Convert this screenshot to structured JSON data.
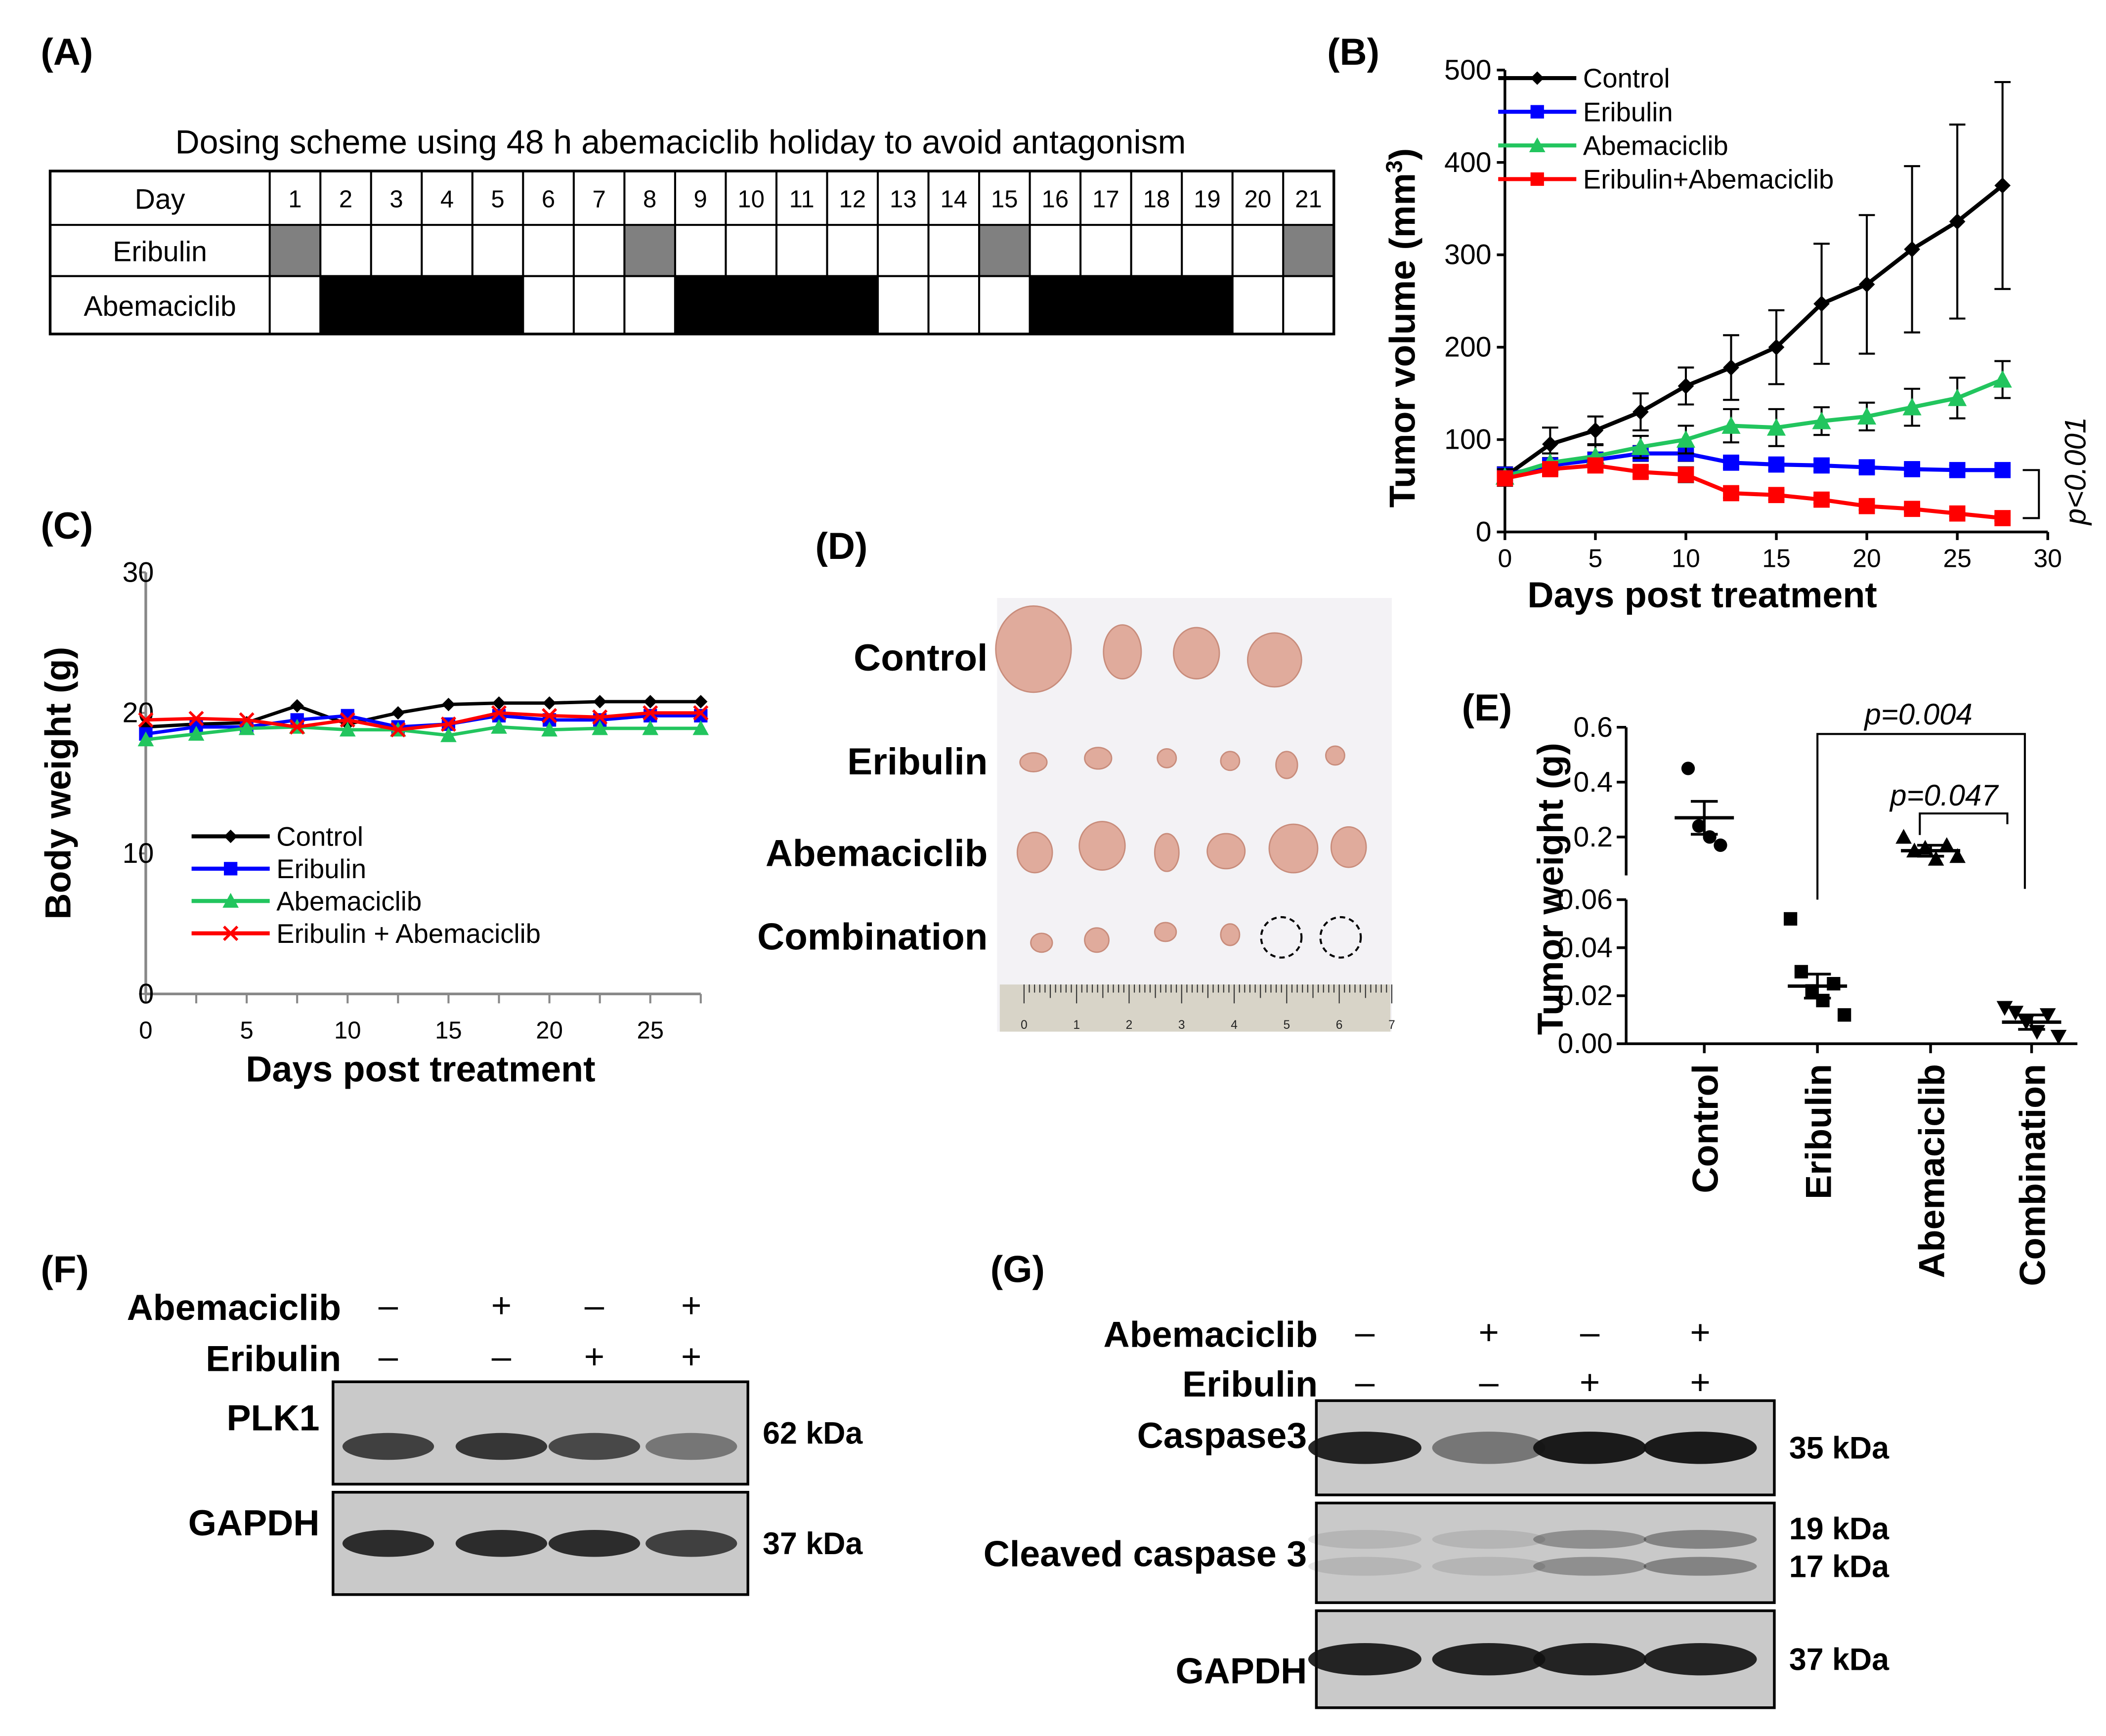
{
  "panels": {
    "A": {
      "label": "(A)",
      "title": "Dosing scheme using 48 h abemaciclib holiday to avoid antagonism",
      "row_labels": [
        "Day",
        "Eribulin",
        "Abemaciclib"
      ],
      "days": [
        "1",
        "2",
        "3",
        "4",
        "5",
        "6",
        "7",
        "8",
        "9",
        "10",
        "11",
        "12",
        "13",
        "14",
        "15",
        "16",
        "17",
        "18",
        "19",
        "20",
        "21"
      ],
      "eribulin_days": [
        1,
        8,
        15,
        21
      ],
      "abemaciclib_days": [
        2,
        3,
        4,
        5,
        9,
        10,
        11,
        12,
        16,
        17,
        18,
        19
      ],
      "eribulin_color": "#808080",
      "abemaciclib_color": "#000000"
    },
    "B": {
      "label": "(B)",
      "pvalue": "p<0.001"
    },
    "C": {
      "label": "(C)"
    },
    "D": {
      "label": "(D)",
      "row_labels": [
        "Control",
        "Eribulin",
        "Abemaciclib",
        "Combination"
      ],
      "ruler_numbers": [
        "0",
        "1",
        "2",
        "3",
        "4",
        "5",
        "6",
        "7"
      ]
    },
    "E": {
      "label": "(E)",
      "p1": "p=0.004",
      "p2": "p=0.047"
    },
    "F": {
      "label": "(F)",
      "treatments": [
        {
          "name": "Abemaciclib",
          "signs": [
            "–",
            "+",
            "–",
            "+"
          ]
        },
        {
          "name": "Eribulin",
          "signs": [
            "–",
            "–",
            "+",
            "+"
          ]
        }
      ],
      "bands": [
        {
          "name": "PLK1",
          "kda": "62 kDa"
        },
        {
          "name": "GAPDH",
          "kda": "37 kDa"
        }
      ]
    },
    "G": {
      "label": "(G)",
      "treatments": [
        {
          "name": "Abemaciclib",
          "signs": [
            "–",
            "+",
            "–",
            "+"
          ]
        },
        {
          "name": "Eribulin",
          "signs": [
            "–",
            "–",
            "+",
            "+"
          ]
        }
      ],
      "bands": [
        {
          "name": "Caspase3",
          "kda": "35 kDa"
        },
        {
          "name": "Cleaved caspase 3",
          "kda": "19 kDa",
          "kda2": "17 kDa"
        },
        {
          "name": "GAPDH",
          "kda": "37 kDa"
        }
      ]
    }
  },
  "chart_data": [
    {
      "id": "B",
      "type": "line",
      "xlabel": "Days post treatment",
      "ylabel": "Tumor volume (mm",
      "ylabel_sup": "3",
      "ylabel_end": ")",
      "xlim": [
        0,
        30
      ],
      "ylim": [
        0,
        500
      ],
      "xticks": [
        0,
        5,
        10,
        15,
        20,
        25,
        30
      ],
      "yticks": [
        0,
        100,
        200,
        300,
        400,
        500
      ],
      "x": [
        0,
        2.5,
        5,
        7.5,
        10,
        12.5,
        15,
        17.5,
        20,
        22.5,
        25,
        27.5
      ],
      "series": [
        {
          "name": "Control",
          "color": "#000000",
          "marker": "diamond",
          "values": [
            60,
            95,
            110,
            130,
            158,
            178,
            200,
            247,
            268,
            306,
            336,
            375
          ],
          "errors": [
            10,
            18,
            15,
            20,
            20,
            35,
            40,
            65,
            75,
            90,
            105,
            112
          ]
        },
        {
          "name": "Eribulin",
          "color": "#0000ff",
          "marker": "square",
          "values": [
            62,
            72,
            78,
            85,
            85,
            75,
            73,
            72,
            70,
            68,
            67,
            67
          ],
          "errors": [
            6,
            8,
            8,
            8,
            8,
            6,
            6,
            6,
            6,
            5,
            5,
            5
          ]
        },
        {
          "name": "Abemaciclib",
          "color": "#22c55e",
          "marker": "triangle",
          "values": [
            60,
            75,
            82,
            92,
            100,
            115,
            113,
            120,
            125,
            135,
            145,
            165
          ],
          "errors": [
            8,
            10,
            12,
            12,
            15,
            18,
            20,
            15,
            15,
            20,
            22,
            20
          ]
        },
        {
          "name": "Eribulin+Abemaciclib",
          "color": "#ff0000",
          "marker": "square",
          "values": [
            58,
            68,
            72,
            65,
            62,
            42,
            40,
            35,
            28,
            25,
            20,
            15
          ],
          "errors": [
            5,
            6,
            6,
            6,
            8,
            5,
            5,
            4,
            4,
            3,
            3,
            3
          ]
        }
      ]
    },
    {
      "id": "C",
      "type": "line",
      "xlabel": "Days post treatment",
      "ylabel": "Body weight (g)",
      "xlim": [
        0,
        27.5
      ],
      "ylim": [
        0,
        30
      ],
      "xticks": [
        0,
        5,
        10,
        15,
        20,
        25
      ],
      "yticks": [
        0,
        10,
        20,
        30
      ],
      "x": [
        0,
        2.5,
        5,
        7.5,
        10,
        12.5,
        15,
        17.5,
        20,
        22.5,
        25,
        27.5
      ],
      "series": [
        {
          "name": "Control",
          "color": "#000000",
          "marker": "diamond",
          "values": [
            19.0,
            19.2,
            19.3,
            20.5,
            19.2,
            20.0,
            20.6,
            20.7,
            20.7,
            20.8,
            20.8,
            20.8
          ]
        },
        {
          "name": "Eribulin",
          "color": "#0000ff",
          "marker": "square",
          "values": [
            18.5,
            19.0,
            19.0,
            19.5,
            19.8,
            19.0,
            19.2,
            19.8,
            19.5,
            19.5,
            19.8,
            19.8
          ]
        },
        {
          "name": "Abemaciclib",
          "color": "#22c55e",
          "marker": "triangle",
          "values": [
            18.1,
            18.5,
            18.9,
            19.0,
            18.8,
            18.8,
            18.4,
            19.0,
            18.8,
            18.9,
            18.9,
            18.9
          ]
        },
        {
          "name": "Eribulin + Abemaciclib",
          "color": "#ff0000",
          "marker": "x",
          "values": [
            19.5,
            19.6,
            19.5,
            19.0,
            19.5,
            18.8,
            19.2,
            20.0,
            19.8,
            19.7,
            20.0,
            20.0
          ]
        }
      ]
    },
    {
      "id": "E",
      "type": "scatter",
      "ylabel": "Tumor weight (g)",
      "categories": [
        "Control",
        "Eribulin",
        "Abemaciclib",
        "Combination"
      ],
      "ylim_lower": [
        0,
        0.06
      ],
      "ylim_upper": [
        0.06,
        0.6
      ],
      "yticks_lower": [
        "0.00",
        "0.02",
        "0.04",
        "0.06"
      ],
      "yticks_upper": [
        "0.2",
        "0.4",
        "0.6"
      ],
      "points": [
        [
          0.45,
          0.24,
          0.2,
          0.17
        ],
        [
          0.052,
          0.03,
          0.022,
          0.018,
          0.025,
          0.012
        ],
        [
          0.2,
          0.15,
          0.16,
          0.12,
          0.17,
          0.13
        ],
        [
          0.015,
          0.013,
          0.009,
          0.005,
          0.012,
          0.003
        ]
      ],
      "means": [
        0.27,
        0.024,
        0.15,
        0.009
      ],
      "sems": [
        0.06,
        0.005,
        0.02,
        0.003
      ]
    }
  ]
}
